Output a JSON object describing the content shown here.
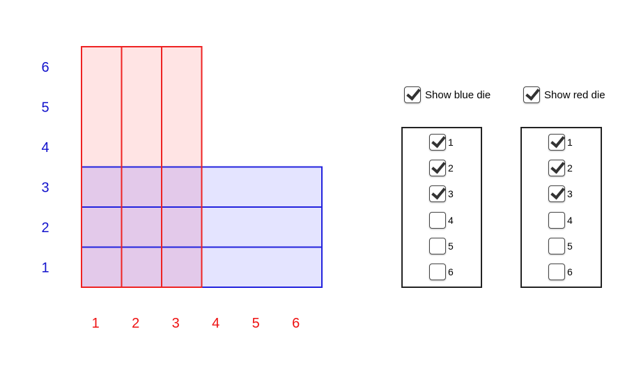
{
  "colors": {
    "red": "#ee2222",
    "red_fill": "#ffe4e4",
    "blue": "#2222dd",
    "blue_fill": "#e4e4ff",
    "overlap_fill": "#e3c9ea",
    "axis_blue_text": "#1111cc",
    "axis_red_text": "#ee1111"
  },
  "icons": {
    "checkbox": "check-icon"
  },
  "chart_data": {
    "type": "diagram",
    "red_die_columns": [
      1,
      2,
      3,
      4,
      5,
      6
    ],
    "blue_die_rows": [
      1,
      2,
      3,
      4,
      5,
      6
    ],
    "red_selected": [
      1,
      2,
      3
    ],
    "blue_selected": [
      1,
      2,
      3
    ]
  },
  "controls": {
    "show_blue": {
      "label": "Show blue die",
      "checked": true
    },
    "show_red": {
      "label": "Show red die",
      "checked": true
    },
    "blue_panel": {
      "items": [
        {
          "label": "1",
          "checked": true
        },
        {
          "label": "2",
          "checked": true
        },
        {
          "label": "3",
          "checked": true
        },
        {
          "label": "4",
          "checked": false
        },
        {
          "label": "5",
          "checked": false
        },
        {
          "label": "6",
          "checked": false
        }
      ]
    },
    "red_panel": {
      "items": [
        {
          "label": "1",
          "checked": true
        },
        {
          "label": "2",
          "checked": true
        },
        {
          "label": "3",
          "checked": true
        },
        {
          "label": "4",
          "checked": false
        },
        {
          "label": "5",
          "checked": false
        },
        {
          "label": "6",
          "checked": false
        }
      ]
    }
  }
}
